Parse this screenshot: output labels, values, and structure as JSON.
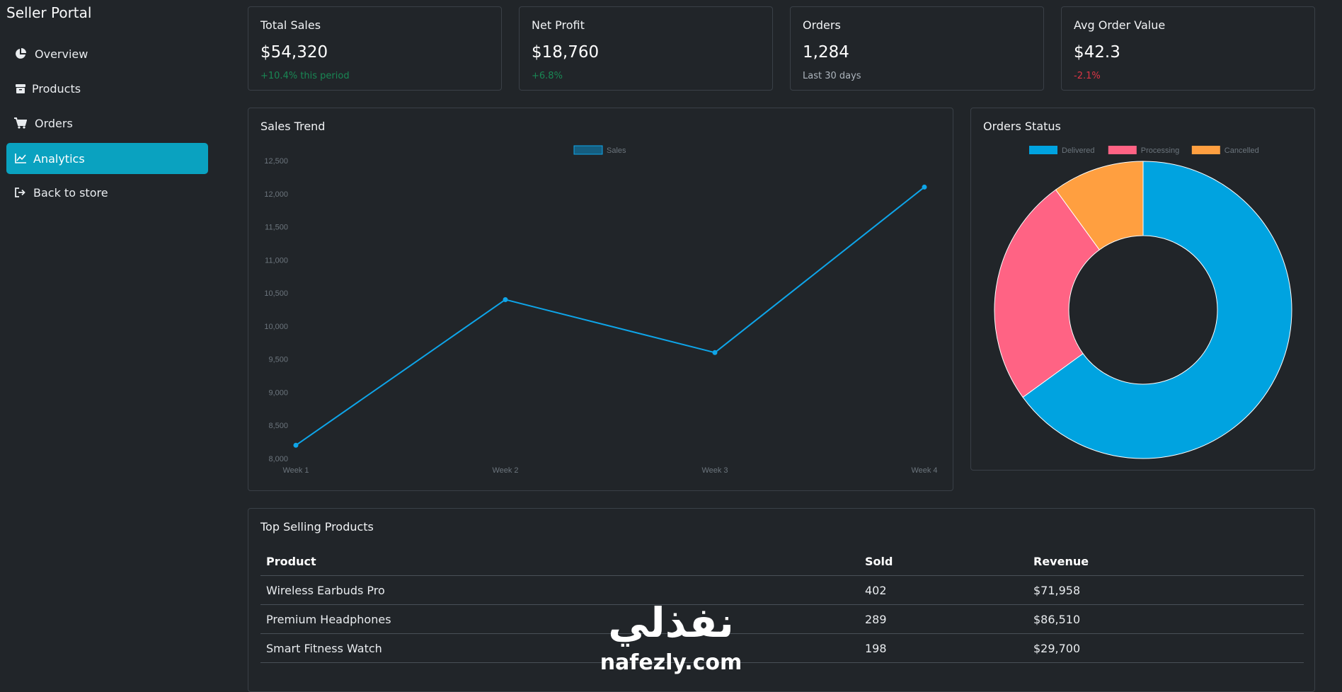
{
  "sidebar": {
    "brand": "Seller Portal",
    "items": [
      {
        "label": "Overview",
        "icon": "pie-chart-icon",
        "active": false
      },
      {
        "label": "Products",
        "icon": "box-icon",
        "active": false
      },
      {
        "label": "Orders",
        "icon": "cart-icon",
        "active": false
      },
      {
        "label": "Analytics",
        "icon": "line-chart-icon",
        "active": true
      },
      {
        "label": "Back to store",
        "icon": "sign-out-icon",
        "active": false
      }
    ]
  },
  "stats": [
    {
      "title": "Total Sales",
      "value": "$54,320",
      "sub": "+10.4% this period",
      "sub_color": "#198754"
    },
    {
      "title": "Net Profit",
      "value": "$18,760",
      "sub": "+6.8%",
      "sub_color": "#198754"
    },
    {
      "title": "Orders",
      "value": "1,284",
      "sub": "Last 30 days",
      "sub_color": "#adb5bd"
    },
    {
      "title": "Avg Order Value",
      "value": "$42.3",
      "sub": "-2.1%",
      "sub_color": "#dc3545"
    }
  ],
  "sales_trend": {
    "title": "Sales Trend"
  },
  "orders_status": {
    "title": "Orders Status"
  },
  "chart_data": [
    {
      "type": "line",
      "title": "Sales Trend",
      "categories": [
        "Week 1",
        "Week 2",
        "Week 3",
        "Week 4"
      ],
      "series": [
        {
          "name": "Sales",
          "values": [
            8200,
            10400,
            9600,
            12100
          ],
          "color": "#0ea5e9"
        }
      ],
      "ylim": [
        8000,
        12500
      ],
      "yticks": [
        "12,500",
        "12,000",
        "11,500",
        "11,000",
        "10,500",
        "10,000",
        "9,500",
        "9,000",
        "8,500",
        "8,000"
      ],
      "legend": "top-center"
    },
    {
      "type": "pie",
      "title": "Orders Status",
      "labels": [
        "Delivered",
        "Processing",
        "Cancelled"
      ],
      "values": [
        65,
        25,
        10
      ],
      "colors": [
        "#00a3e0",
        "#ff6384",
        "#ff9f40"
      ],
      "legend": "top-center"
    }
  ],
  "top_products": {
    "title": "Top Selling Products",
    "columns": [
      "Product",
      "Sold",
      "Revenue"
    ],
    "rows": [
      [
        "Wireless Earbuds Pro",
        "402",
        "$71,958"
      ],
      [
        "Premium Headphones",
        "289",
        "$86,510"
      ],
      [
        "Smart Fitness Watch",
        "198",
        "$29,700"
      ]
    ]
  },
  "watermark": {
    "arabic": "نفذلي",
    "latin": "nafezly.com"
  }
}
